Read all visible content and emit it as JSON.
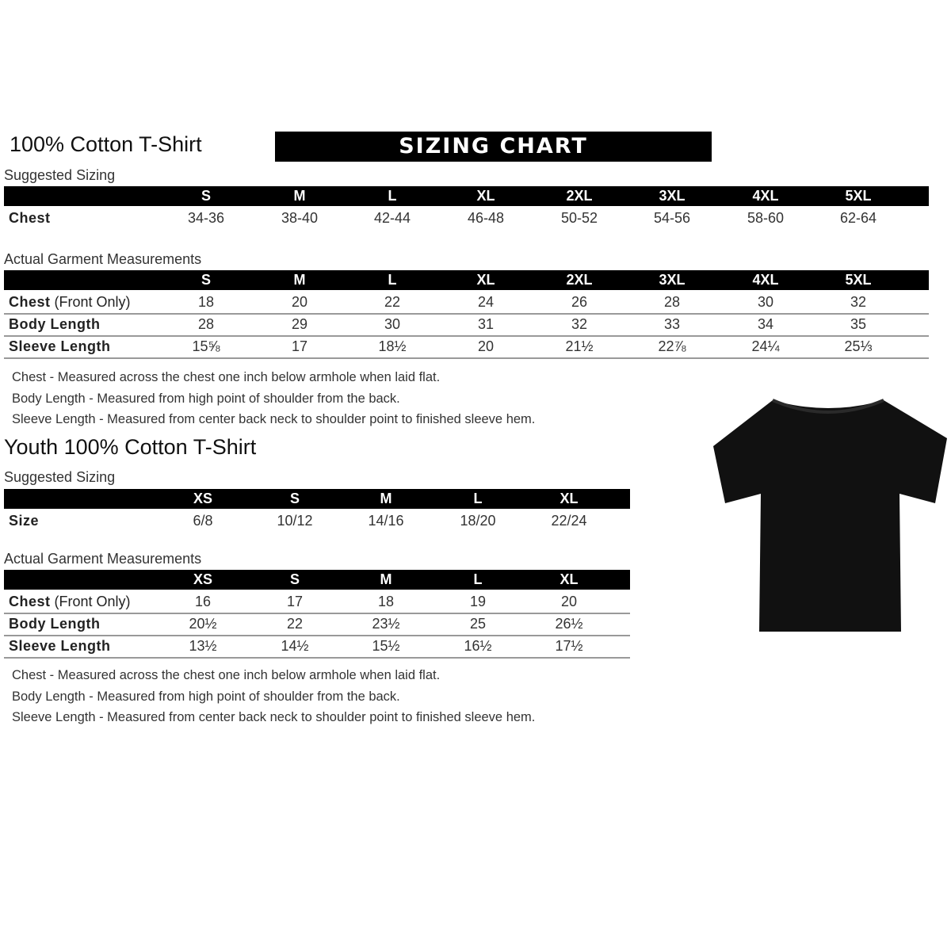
{
  "adult": {
    "title": "100% Cotton T-Shirt",
    "banner": "SIZING CHART",
    "suggested_label": "Suggested Sizing",
    "sizes": [
      "S",
      "M",
      "L",
      "XL",
      "2XL",
      "3XL",
      "4XL",
      "5XL"
    ],
    "suggested_rows": [
      {
        "label": "Chest",
        "values": [
          "34-36",
          "38-40",
          "42-44",
          "46-48",
          "50-52",
          "54-56",
          "58-60",
          "62-64"
        ]
      }
    ],
    "actual_label": "Actual Garment Measurements",
    "actual_rows": [
      {
        "label": "Chest",
        "suffix": " (Front Only)",
        "values": [
          "18",
          "20",
          "22",
          "24",
          "26",
          "28",
          "30",
          "32"
        ]
      },
      {
        "label": "Body Length",
        "suffix": "",
        "values": [
          "28",
          "29",
          "30",
          "31",
          "32",
          "33",
          "34",
          "35"
        ]
      },
      {
        "label": "Sleeve Length",
        "suffix": "",
        "values": [
          "15⅝",
          "17",
          "18½",
          "20",
          "21½",
          "22⅞",
          "24¼",
          "25⅓"
        ]
      }
    ],
    "notes": [
      "Chest - Measured across the chest one inch below armhole when laid flat.",
      "Body Length - Measured from high point of shoulder from the back.",
      "Sleeve Length - Measured from center back neck to shoulder point to finished sleeve hem."
    ]
  },
  "youth": {
    "title": "Youth 100% Cotton T-Shirt",
    "suggested_label": "Suggested Sizing",
    "sizes": [
      "XS",
      "S",
      "M",
      "L",
      "XL"
    ],
    "suggested_rows": [
      {
        "label": "Size",
        "values": [
          "6/8",
          "10/12",
          "14/16",
          "18/20",
          "22/24"
        ]
      }
    ],
    "actual_label": "Actual Garment Measurements",
    "actual_rows": [
      {
        "label": "Chest",
        "suffix": " (Front Only)",
        "values": [
          "16",
          "17",
          "18",
          "19",
          "20"
        ]
      },
      {
        "label": "Body Length",
        "suffix": "",
        "values": [
          "20½",
          "22",
          "23½",
          "25",
          "26½"
        ]
      },
      {
        "label": "Sleeve Length",
        "suffix": "",
        "values": [
          "13½",
          "14½",
          "15½",
          "16½",
          "17½"
        ]
      }
    ],
    "notes": [
      "Chest - Measured across the chest one inch below armhole when laid flat.",
      "Body Length - Measured from high point of shoulder from the back.",
      "Sleeve Length - Measured from center back neck to shoulder point to finished sleeve hem."
    ]
  },
  "colors": {
    "header_bg": "#000000",
    "header_text": "#ffffff",
    "shirt": "#111111"
  }
}
